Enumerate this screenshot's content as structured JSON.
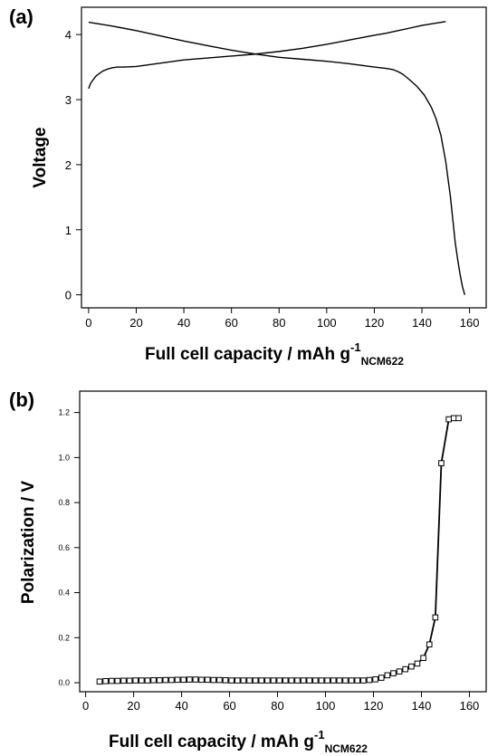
{
  "chart_data": [
    {
      "type": "line",
      "panel_label": "(a)",
      "xlabel": "Full cell capacity / mAh g",
      "xlabel_sup": "-1",
      "xlabel_sub": "NCM622",
      "ylabel": "Voltage",
      "xlim": [
        -3,
        167
      ],
      "ylim": [
        -0.2,
        4.42
      ],
      "xticks": [
        0,
        20,
        40,
        60,
        80,
        100,
        120,
        140,
        160
      ],
      "yticks": [
        0,
        1,
        2,
        3,
        4
      ],
      "grid": false,
      "series": [
        {
          "x": [
            0,
            0.5,
            1,
            2,
            3,
            4,
            6,
            8,
            10,
            12,
            15,
            20,
            30,
            40,
            50,
            60,
            70,
            80,
            90,
            100,
            110,
            120,
            125,
            130,
            135,
            140,
            145,
            150
          ],
          "y": [
            3.17,
            3.22,
            3.26,
            3.31,
            3.36,
            3.39,
            3.44,
            3.47,
            3.49,
            3.5,
            3.5,
            3.51,
            3.56,
            3.61,
            3.64,
            3.67,
            3.7,
            3.74,
            3.79,
            3.85,
            3.92,
            3.99,
            4.02,
            4.06,
            4.1,
            4.14,
            4.17,
            4.2
          ]
        },
        {
          "x": [
            0,
            10,
            20,
            30,
            40,
            50,
            60,
            70,
            80,
            90,
            100,
            110,
            120,
            125,
            128,
            130,
            132,
            135,
            138,
            141,
            144,
            146,
            148,
            150,
            152,
            153,
            154,
            155,
            156,
            157,
            158
          ],
          "y": [
            4.19,
            4.13,
            4.06,
            3.98,
            3.9,
            3.83,
            3.76,
            3.7,
            3.65,
            3.62,
            3.59,
            3.55,
            3.5,
            3.48,
            3.46,
            3.43,
            3.39,
            3.3,
            3.2,
            3.07,
            2.88,
            2.7,
            2.45,
            2.05,
            1.5,
            1.15,
            0.8,
            0.55,
            0.32,
            0.13,
            0
          ]
        }
      ]
    },
    {
      "type": "line",
      "panel_label": "(b)",
      "xlabel": "Full cell capacity / mAh g",
      "xlabel_sup": "-1",
      "xlabel_sub": "NCM622",
      "ylabel": "Polarization / V",
      "xlim": [
        -2.5,
        167
      ],
      "ylim": [
        -0.04,
        1.295
      ],
      "xticks": [
        0,
        20,
        40,
        60,
        80,
        100,
        120,
        140,
        160
      ],
      "yticks": [
        0.0,
        0.2,
        0.4,
        0.6,
        0.8,
        1.0,
        1.2
      ],
      "ytick_labels": [
        "0.0",
        "0.2",
        "0.4",
        "0.6",
        "0.8",
        "1.0",
        "1.2"
      ],
      "grid": false,
      "marker": "open-square",
      "series": [
        {
          "x": [
            5.8,
            8.3,
            10.8,
            13.3,
            15.8,
            18.3,
            20.8,
            23.3,
            25.8,
            28.3,
            30.8,
            33.3,
            35.8,
            38.3,
            40.8,
            43.3,
            45.8,
            48.3,
            50.8,
            53.3,
            55.8,
            58.3,
            60.8,
            63.3,
            65.8,
            68.3,
            70.8,
            73.3,
            75.8,
            78.3,
            80.8,
            83.3,
            85.8,
            88.3,
            90.8,
            93.3,
            95.8,
            98.3,
            100.8,
            103.3,
            105.8,
            108.3,
            110.8,
            113.3,
            115.8,
            118.3,
            120.8,
            123.3,
            125.8,
            128.3,
            130.8,
            133.3,
            135.8,
            138.3,
            140.8,
            143.3,
            145.8,
            148.3,
            151.4,
            153.5,
            155.5
          ],
          "y": [
            0.005,
            0.007,
            0.008,
            0.008,
            0.009,
            0.009,
            0.01,
            0.01,
            0.01,
            0.011,
            0.011,
            0.012,
            0.012,
            0.013,
            0.013,
            0.014,
            0.014,
            0.013,
            0.013,
            0.012,
            0.012,
            0.011,
            0.01,
            0.01,
            0.01,
            0.01,
            0.01,
            0.01,
            0.01,
            0.01,
            0.01,
            0.01,
            0.01,
            0.01,
            0.01,
            0.01,
            0.01,
            0.01,
            0.01,
            0.01,
            0.01,
            0.01,
            0.01,
            0.01,
            0.01,
            0.012,
            0.015,
            0.022,
            0.033,
            0.042,
            0.05,
            0.06,
            0.072,
            0.085,
            0.11,
            0.17,
            0.29,
            0.975,
            1.17,
            1.175,
            1.175
          ]
        }
      ]
    }
  ]
}
